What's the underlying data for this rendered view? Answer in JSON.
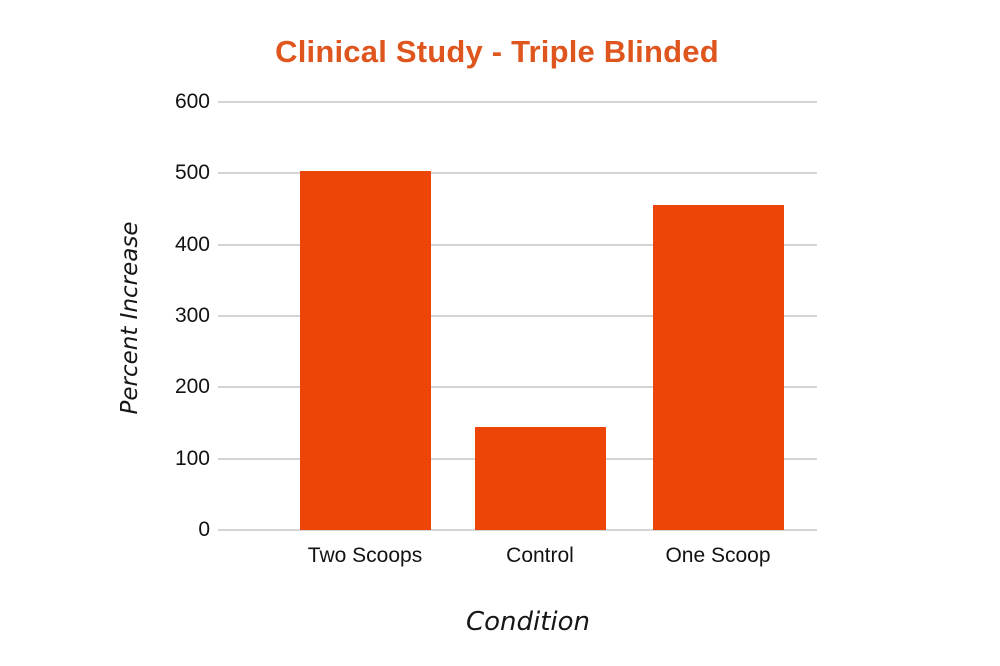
{
  "figure": {
    "background": "#ffffff"
  },
  "chart_data": {
    "type": "bar",
    "title": "Clinical Study - Triple Blinded",
    "categories": [
      "Two Scoops",
      "Control",
      "One Scoop"
    ],
    "values": [
      503,
      145,
      455
    ],
    "xlabel": "Condition",
    "ylabel": "Percent Increase",
    "yticks": [
      0,
      100,
      200,
      300,
      400,
      500,
      600
    ],
    "ylim": [
      0,
      600
    ],
    "grid": "horizontal-only",
    "legend": "none",
    "colors": {
      "bar": "#ED4507",
      "title": "#DF551E",
      "gridline": "#D4D4D4",
      "text": "#121212"
    }
  }
}
